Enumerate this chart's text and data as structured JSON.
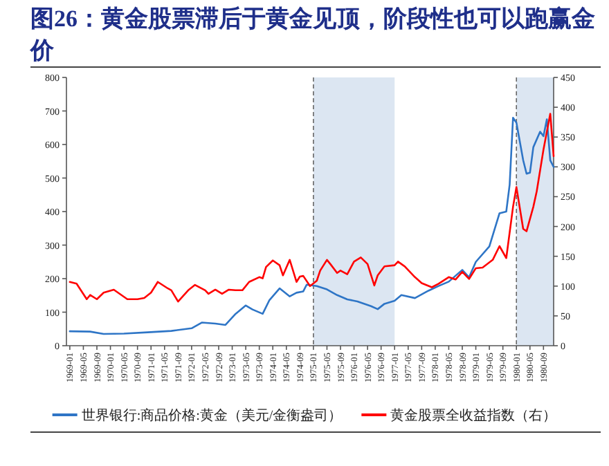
{
  "chart_data": {
    "type": "line",
    "title": "图26：黄金股票滞后于黄金见顶，阶段性也可以跑赢金价",
    "xlim": [
      "1968-12",
      "1980-12"
    ],
    "xticks": [
      "1969-01",
      "1969-05",
      "1969-09",
      "1970-01",
      "1970-05",
      "1970-09",
      "1971-01",
      "1971-05",
      "1971-09",
      "1972-01",
      "1972-05",
      "1972-09",
      "1973-01",
      "1973-05",
      "1973-09",
      "1974-01",
      "1974-05",
      "1974-09",
      "1975-01",
      "1975-05",
      "1975-09",
      "1976-01",
      "1976-05",
      "1976-09",
      "1977-01",
      "1977-05",
      "1977-09",
      "1978-01",
      "1978-05",
      "1978-09",
      "1979-01",
      "1979-05",
      "1979-09",
      "1980-01",
      "1980-05",
      "1980-09"
    ],
    "ylim": [
      0,
      800
    ],
    "yticks": [
      0,
      100,
      200,
      300,
      400,
      500,
      600,
      700,
      800
    ],
    "y2lim": [
      0,
      450
    ],
    "y2ticks": [
      0,
      50,
      100,
      150,
      200,
      250,
      300,
      350,
      400,
      450
    ],
    "legend": "bottom",
    "ref_lines": [
      {
        "axis": "x",
        "value": "1975-01",
        "color": "#666666",
        "line_style": "dashed"
      },
      {
        "axis": "x",
        "value": "1980-01",
        "color": "#666666",
        "line_style": "dashed"
      }
    ],
    "bands": [
      {
        "axis": "x",
        "from": "1975-01",
        "to": "1977-01",
        "color": "#dce6f2"
      },
      {
        "axis": "x",
        "from": "1980-01",
        "to": "1980-12",
        "color": "#dce6f2"
      }
    ],
    "series": [
      {
        "name": "世界银行:商品价格:黄金（美元/金衡盎司）",
        "color": "#2e75c6",
        "x": [
          "1969-01",
          "1969-07",
          "1969-11",
          "1970-05",
          "1970-12",
          "1971-07",
          "1972-01",
          "1972-04",
          "1972-08",
          "1972-11",
          "1973-02",
          "1973-05",
          "1973-07",
          "1973-10",
          "1973-12",
          "1974-03",
          "1974-06",
          "1974-08",
          "1974-10",
          "1974-11",
          "1975-02",
          "1975-05",
          "1975-08",
          "1975-11",
          "1976-02",
          "1976-06",
          "1976-08",
          "1976-10",
          "1977-01",
          "1977-03",
          "1977-07",
          "1977-11",
          "1978-02",
          "1978-05",
          "1978-09",
          "1978-11",
          "1979-01",
          "1979-05",
          "1979-08",
          "1979-10",
          "1979-11",
          "1979-12",
          "1980-01",
          "1980-03",
          "1980-04",
          "1980-05",
          "1980-06",
          "1980-08",
          "1980-09",
          "1980-10",
          "1980-11",
          "1980-12"
        ],
        "values": [
          43,
          42,
          35,
          36,
          40,
          44,
          52,
          69,
          66,
          62,
          95,
          120,
          108,
          95,
          136,
          171,
          147,
          158,
          162,
          182,
          178,
          168,
          151,
          138,
          132,
          118,
          109,
          125,
          134,
          151,
          142,
          164,
          178,
          191,
          226,
          204,
          250,
          296,
          395,
          400,
          480,
          680,
          665,
          553,
          513,
          516,
          592,
          638,
          625,
          675,
          553,
          533
        ]
      },
      {
        "name": "黄金股票全收益指数（右）",
        "color": "#ff0000",
        "axis": "y2",
        "x": [
          "1969-01",
          "1969-03",
          "1969-06",
          "1969-07",
          "1969-09",
          "1969-11",
          "1970-02",
          "1970-06",
          "1970-09",
          "1970-11",
          "1971-01",
          "1971-03",
          "1971-06",
          "1971-07",
          "1971-09",
          "1971-12",
          "1972-02",
          "1972-05",
          "1972-06",
          "1972-08",
          "1972-10",
          "1972-12",
          "1973-02",
          "1973-04",
          "1973-06",
          "1973-09",
          "1973-10",
          "1973-11",
          "1974-01",
          "1974-03",
          "1974-04",
          "1974-06",
          "1974-08",
          "1974-09",
          "1974-10",
          "1974-12",
          "1975-02",
          "1975-03",
          "1975-05",
          "1975-06",
          "1975-08",
          "1975-09",
          "1975-11",
          "1976-01",
          "1976-03",
          "1976-05",
          "1976-07",
          "1976-08",
          "1976-10",
          "1977-01",
          "1977-02",
          "1977-04",
          "1977-07",
          "1977-09",
          "1977-12",
          "1978-02",
          "1978-05",
          "1978-07",
          "1978-09",
          "1978-11",
          "1979-01",
          "1979-03",
          "1979-06",
          "1979-08",
          "1979-10",
          "1979-12",
          "1980-01",
          "1980-03",
          "1980-04",
          "1980-06",
          "1980-07",
          "1980-09",
          "1980-11",
          "1980-12"
        ],
        "values": [
          107,
          104,
          78,
          85,
          78,
          89,
          94,
          78,
          78,
          80,
          89,
          107,
          96,
          93,
          74,
          93,
          102,
          93,
          87,
          94,
          87,
          94,
          93,
          93,
          107,
          115,
          113,
          132,
          143,
          135,
          118,
          144,
          107,
          116,
          117,
          100,
          109,
          126,
          144,
          137,
          122,
          126,
          120,
          141,
          148,
          137,
          101,
          118,
          133,
          135,
          141,
          133,
          115,
          105,
          98,
          104,
          115,
          111,
          124,
          112,
          130,
          131,
          144,
          167,
          147,
          233,
          266,
          196,
          192,
          233,
          259,
          329,
          389,
          318
        ]
      }
    ]
  }
}
